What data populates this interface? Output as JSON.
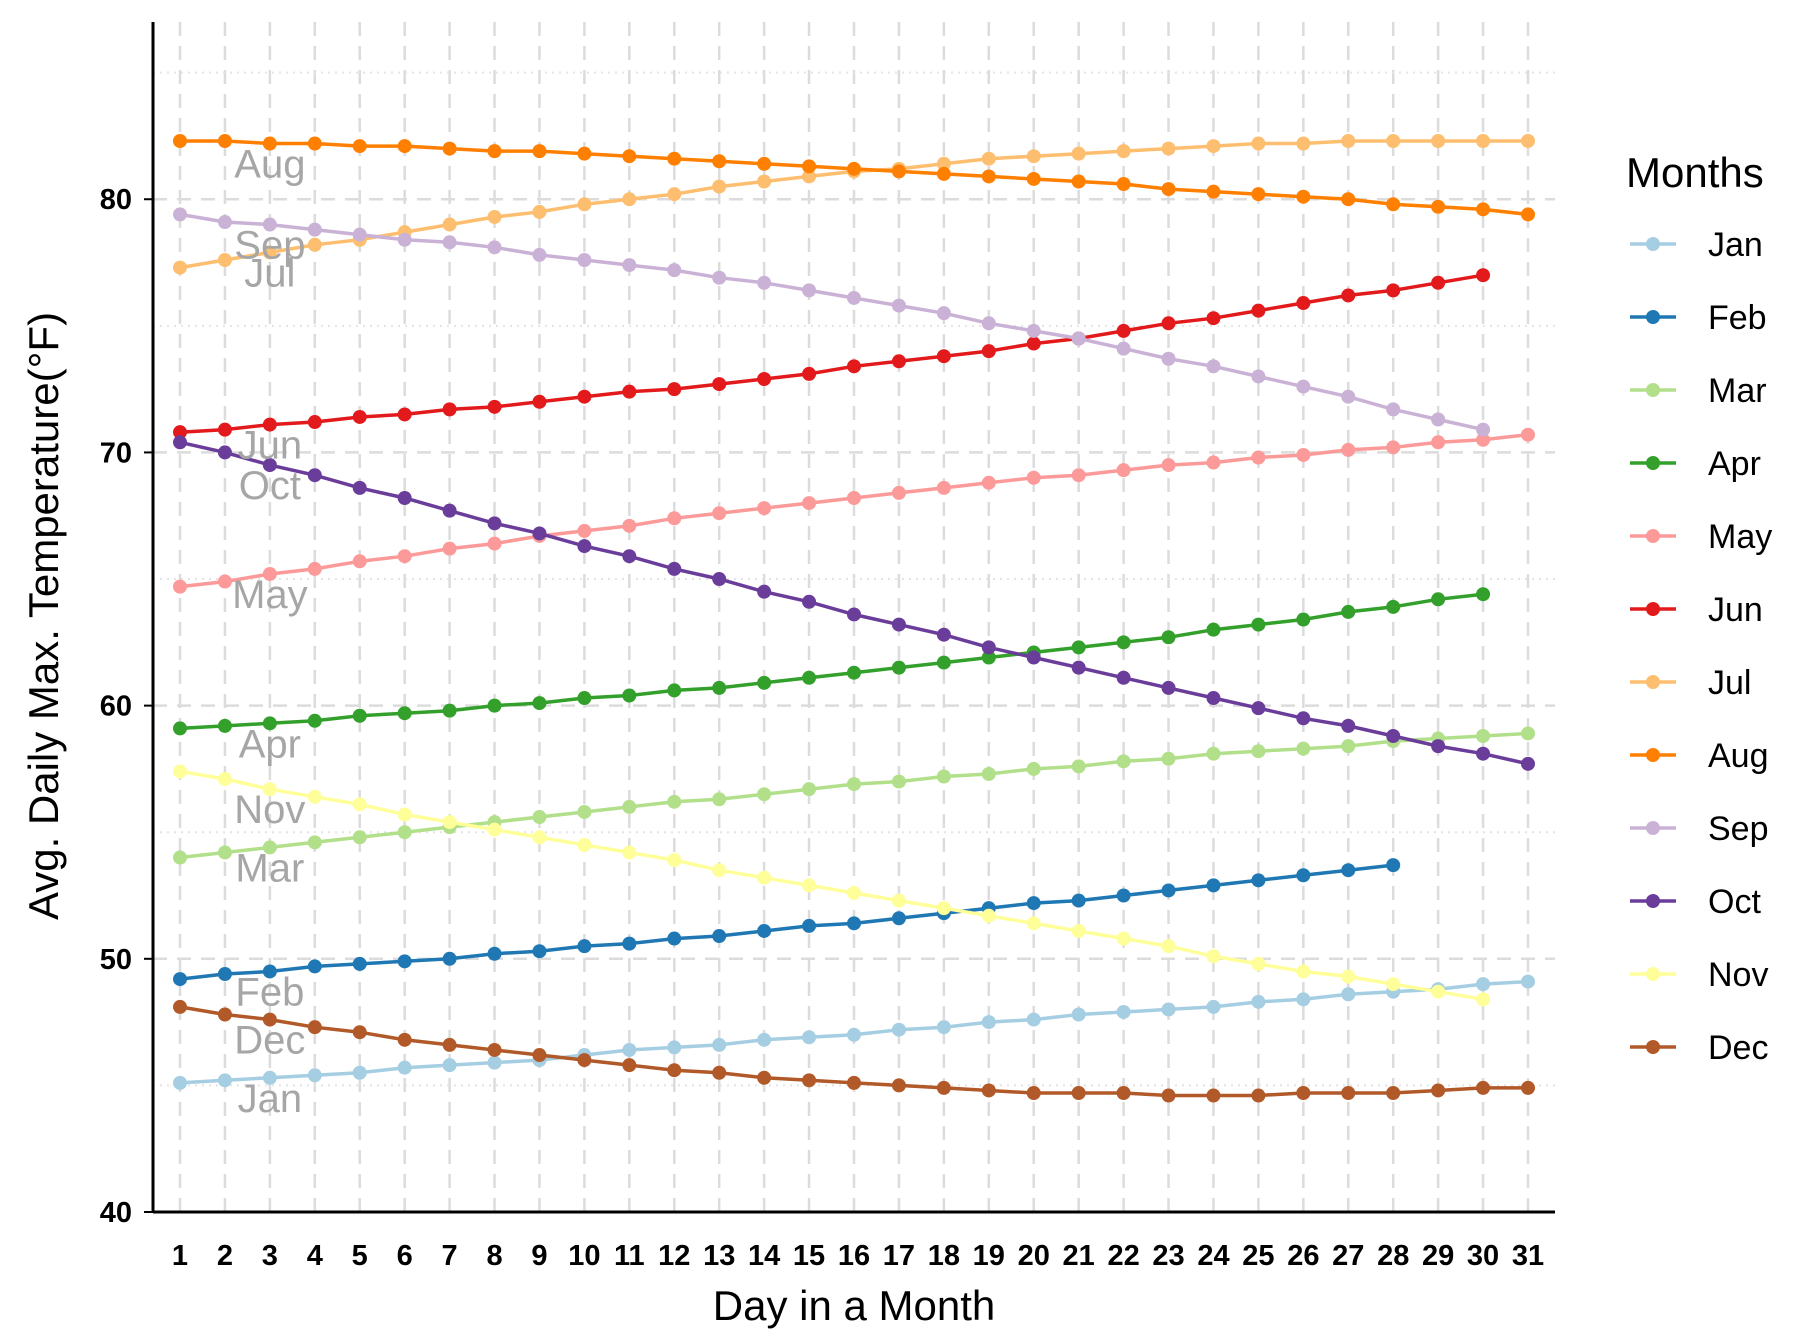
{
  "chart_data": {
    "type": "line",
    "xlabel": "Day in a Month",
    "ylabel": "Avg. Daily Max. Temperature(°F)",
    "xlim": [
      1,
      31
    ],
    "ylim": [
      40,
      87
    ],
    "y_ticks": [
      40,
      50,
      60,
      70,
      80
    ],
    "x_ticks": [
      1,
      2,
      3,
      4,
      5,
      6,
      7,
      8,
      9,
      10,
      11,
      12,
      13,
      14,
      15,
      16,
      17,
      18,
      19,
      20,
      21,
      22,
      23,
      24,
      25,
      26,
      27,
      28,
      29,
      30,
      31
    ],
    "grid": {
      "vertical": "dashed",
      "horizontal": "dashed-major-dotted-minor"
    },
    "legend": {
      "title": "Months",
      "position": "right"
    },
    "series": [
      {
        "name": "Jan",
        "color": "#a6cee3",
        "label_at_day": 3,
        "values": [
          45.1,
          45.2,
          45.3,
          45.4,
          45.5,
          45.7,
          45.8,
          45.9,
          46.0,
          46.2,
          46.4,
          46.5,
          46.6,
          46.8,
          46.9,
          47.0,
          47.2,
          47.3,
          47.5,
          47.6,
          47.8,
          47.9,
          48.0,
          48.1,
          48.3,
          48.4,
          48.6,
          48.7,
          48.8,
          49.0,
          49.1
        ]
      },
      {
        "name": "Feb",
        "color": "#1f78b4",
        "label_at_day": 3,
        "values": [
          49.2,
          49.4,
          49.5,
          49.7,
          49.8,
          49.9,
          50.0,
          50.2,
          50.3,
          50.5,
          50.6,
          50.8,
          50.9,
          51.1,
          51.3,
          51.4,
          51.6,
          51.8,
          52.0,
          52.2,
          52.3,
          52.5,
          52.7,
          52.9,
          53.1,
          53.3,
          53.5,
          53.7
        ]
      },
      {
        "name": "Mar",
        "color": "#b2df8a",
        "label_at_day": 3,
        "values": [
          54.0,
          54.2,
          54.4,
          54.6,
          54.8,
          55.0,
          55.2,
          55.4,
          55.6,
          55.8,
          56.0,
          56.2,
          56.3,
          56.5,
          56.7,
          56.9,
          57.0,
          57.2,
          57.3,
          57.5,
          57.6,
          57.8,
          57.9,
          58.1,
          58.2,
          58.3,
          58.4,
          58.6,
          58.7,
          58.8,
          58.9
        ]
      },
      {
        "name": "Apr",
        "color": "#33a02c",
        "label_at_day": 3,
        "values": [
          59.1,
          59.2,
          59.3,
          59.4,
          59.6,
          59.7,
          59.8,
          60.0,
          60.1,
          60.3,
          60.4,
          60.6,
          60.7,
          60.9,
          61.1,
          61.3,
          61.5,
          61.7,
          61.9,
          62.1,
          62.3,
          62.5,
          62.7,
          63.0,
          63.2,
          63.4,
          63.7,
          63.9,
          64.2,
          64.4
        ]
      },
      {
        "name": "May",
        "color": "#fb9a99",
        "label_at_day": 3,
        "values": [
          64.7,
          64.9,
          65.2,
          65.4,
          65.7,
          65.9,
          66.2,
          66.4,
          66.7,
          66.9,
          67.1,
          67.4,
          67.6,
          67.8,
          68.0,
          68.2,
          68.4,
          68.6,
          68.8,
          69.0,
          69.1,
          69.3,
          69.5,
          69.6,
          69.8,
          69.9,
          70.1,
          70.2,
          70.4,
          70.5,
          70.7
        ]
      },
      {
        "name": "Jun",
        "color": "#e31a1c",
        "label_at_day": 3,
        "values": [
          70.8,
          70.9,
          71.1,
          71.2,
          71.4,
          71.5,
          71.7,
          71.8,
          72.0,
          72.2,
          72.4,
          72.5,
          72.7,
          72.9,
          73.1,
          73.4,
          73.6,
          73.8,
          74.0,
          74.3,
          74.5,
          74.8,
          75.1,
          75.3,
          75.6,
          75.9,
          76.2,
          76.4,
          76.7,
          77.0
        ]
      },
      {
        "name": "Jul",
        "color": "#fdbf6f",
        "label_at_day": 3,
        "values": [
          77.3,
          77.6,
          77.9,
          78.2,
          78.4,
          78.7,
          79.0,
          79.3,
          79.5,
          79.8,
          80.0,
          80.2,
          80.5,
          80.7,
          80.9,
          81.1,
          81.2,
          81.4,
          81.6,
          81.7,
          81.8,
          81.9,
          82.0,
          82.1,
          82.2,
          82.2,
          82.3,
          82.3,
          82.3,
          82.3,
          82.3
        ]
      },
      {
        "name": "Aug",
        "color": "#ff7f00",
        "label_at_day": 3,
        "values": [
          82.3,
          82.3,
          82.2,
          82.2,
          82.1,
          82.1,
          82.0,
          81.9,
          81.9,
          81.8,
          81.7,
          81.6,
          81.5,
          81.4,
          81.3,
          81.2,
          81.1,
          81.0,
          80.9,
          80.8,
          80.7,
          80.6,
          80.4,
          80.3,
          80.2,
          80.1,
          80.0,
          79.8,
          79.7,
          79.6,
          79.4
        ]
      },
      {
        "name": "Sep",
        "color": "#cab2d6",
        "label_at_day": 3,
        "values": [
          79.4,
          79.1,
          79.0,
          78.8,
          78.6,
          78.4,
          78.3,
          78.1,
          77.8,
          77.6,
          77.4,
          77.2,
          76.9,
          76.7,
          76.4,
          76.1,
          75.8,
          75.5,
          75.1,
          74.8,
          74.5,
          74.1,
          73.7,
          73.4,
          73.0,
          72.6,
          72.2,
          71.7,
          71.3,
          70.9
        ]
      },
      {
        "name": "Oct",
        "color": "#6a3d9a",
        "label_at_day": 3,
        "values": [
          70.4,
          70.0,
          69.5,
          69.1,
          68.6,
          68.2,
          67.7,
          67.2,
          66.8,
          66.3,
          65.9,
          65.4,
          65.0,
          64.5,
          64.1,
          63.6,
          63.2,
          62.8,
          62.3,
          61.9,
          61.5,
          61.1,
          60.7,
          60.3,
          59.9,
          59.5,
          59.2,
          58.8,
          58.4,
          58.1,
          57.7
        ]
      },
      {
        "name": "Nov",
        "color": "#ffff99",
        "label_at_day": 3,
        "values": [
          57.4,
          57.1,
          56.7,
          56.4,
          56.1,
          55.7,
          55.4,
          55.1,
          54.8,
          54.5,
          54.2,
          53.9,
          53.5,
          53.2,
          52.9,
          52.6,
          52.3,
          52.0,
          51.7,
          51.4,
          51.1,
          50.8,
          50.5,
          50.1,
          49.8,
          49.5,
          49.3,
          49.0,
          48.7,
          48.4
        ]
      },
      {
        "name": "Dec",
        "color": "#b15928",
        "label_at_day": 3,
        "values": [
          48.1,
          47.8,
          47.6,
          47.3,
          47.1,
          46.8,
          46.6,
          46.4,
          46.2,
          46.0,
          45.8,
          45.6,
          45.5,
          45.3,
          45.2,
          45.1,
          45.0,
          44.9,
          44.8,
          44.7,
          44.7,
          44.7,
          44.6,
          44.6,
          44.6,
          44.7,
          44.7,
          44.7,
          44.8,
          44.9,
          44.9
        ]
      }
    ]
  }
}
